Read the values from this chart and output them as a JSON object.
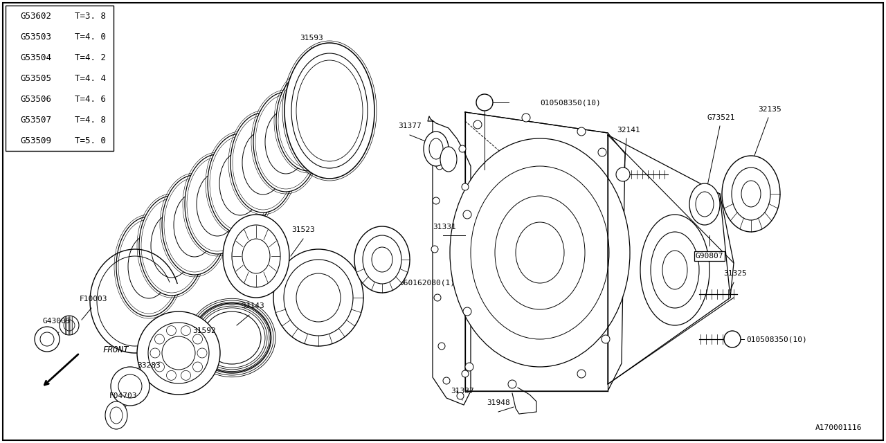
{
  "background_color": "#ffffff",
  "diagram_id": "A170001116",
  "table_data": [
    [
      "G53602",
      "T=3. 8"
    ],
    [
      "G53503",
      "T=4. 0"
    ],
    [
      "G53504",
      "T=4. 2"
    ],
    [
      "G53505",
      "T=4. 4"
    ],
    [
      "G53506",
      "T=4. 6"
    ],
    [
      "G53507",
      "T=4. 8"
    ],
    [
      "G53509",
      "T=5. 0"
    ]
  ],
  "figsize": [
    12.8,
    6.4
  ],
  "dpi": 100
}
